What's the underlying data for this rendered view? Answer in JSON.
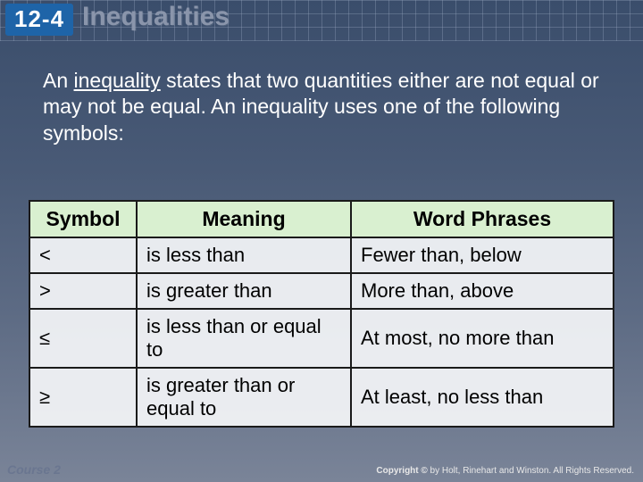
{
  "header": {
    "badge": "12-4",
    "title": "Inequalities"
  },
  "intro": {
    "prefix": "An ",
    "term": "inequality",
    "rest": " states that two quantities either are not equal or may not be equal. An inequality uses one of the following symbols:"
  },
  "table": {
    "columns": [
      "Symbol",
      "Meaning",
      "Word Phrases"
    ],
    "rows": [
      {
        "symbol": "<",
        "meaning": "is less than",
        "phrase": "Fewer than, below"
      },
      {
        "symbol": ">",
        "meaning": "is greater than",
        "phrase": "More than, above"
      },
      {
        "symbol": "≤",
        "meaning": "is less than or equal to",
        "phrase": "At most, no more than"
      },
      {
        "symbol": "≥",
        "meaning": "is greater than or equal to",
        "phrase": "At least, no less than"
      }
    ],
    "header_bg": "#d9f0d0",
    "border_color": "#1a1a1a",
    "cell_bg": "rgba(245,246,248,0.92)",
    "header_fontsize": 23,
    "cell_fontsize": 22
  },
  "footer": {
    "left": "Course 2",
    "copyright_label": "Copyright ©",
    "copyright_rest": " by Holt, Rinehart and Winston. All Rights Reserved."
  },
  "colors": {
    "badge_bg": "#1e64a8",
    "title_color": "#8a95ab",
    "bg_gradient_top": "#3a4d6b",
    "bg_gradient_bottom": "#7a8498"
  }
}
